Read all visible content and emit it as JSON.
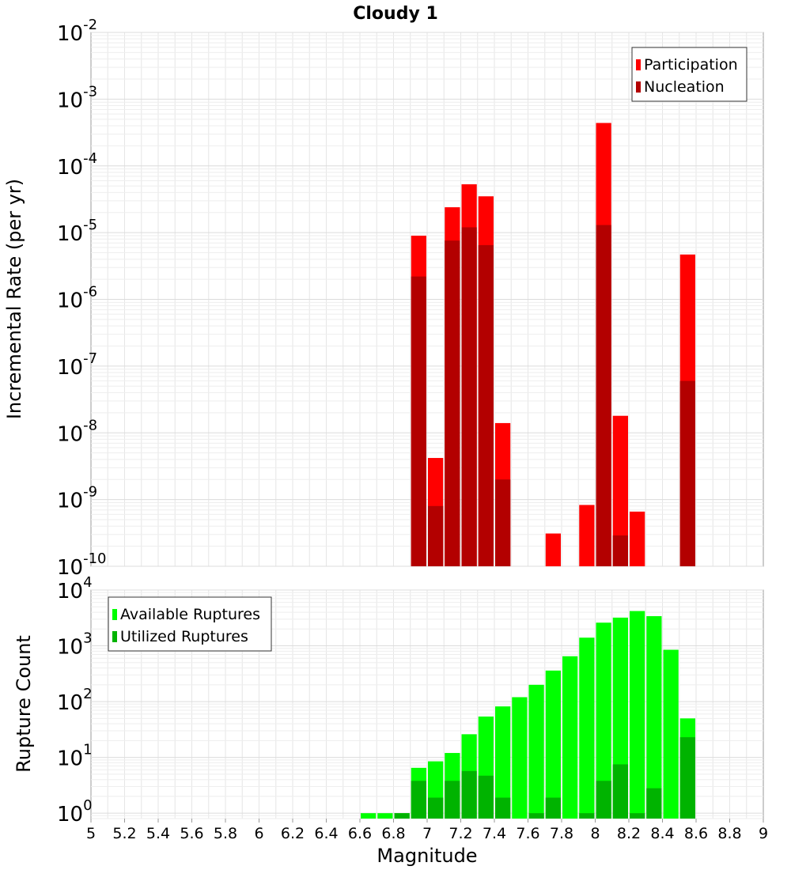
{
  "chart_data": [
    {
      "type": "bar",
      "title": "Cloudy 1",
      "xlabel": "",
      "ylabel": "Incremental Rate (per yr)",
      "yscale": "log",
      "ylim": [
        1e-10,
        0.01
      ],
      "xlim": [
        5,
        9
      ],
      "bin_width": 0.1,
      "grid": true,
      "legend": "top-right",
      "series": [
        {
          "name": "Participation",
          "color": "#ff0000",
          "x": [
            6.95,
            7.05,
            7.15,
            7.25,
            7.35,
            7.45,
            7.75,
            7.95,
            8.05,
            8.15,
            8.25,
            8.55
          ],
          "values": [
            9e-06,
            4.2e-09,
            2.4e-05,
            5.3e-05,
            3.5e-05,
            1.4e-08,
            3.1e-10,
            8.3e-10,
            0.00044,
            1.8e-08,
            6.6e-10,
            4.7e-06
          ]
        },
        {
          "name": "Nucleation",
          "color": "#b30000",
          "x": [
            6.95,
            7.05,
            7.15,
            7.25,
            7.35,
            7.45,
            8.05,
            8.15,
            8.55
          ],
          "values": [
            2.2e-06,
            8e-10,
            7.6e-06,
            1.2e-05,
            6.5e-06,
            2e-09,
            1.3e-05,
            2.9e-10,
            6e-08
          ]
        }
      ]
    },
    {
      "type": "bar",
      "title": "",
      "xlabel": "Magnitude",
      "ylabel": "Rupture Count",
      "yscale": "log",
      "ylim": [
        0.8,
        10000
      ],
      "xlim": [
        5,
        9
      ],
      "bin_width": 0.1,
      "xticks": [
        "5",
        "5.2",
        "5.4",
        "5.6",
        "5.8",
        "6",
        "6.2",
        "6.4",
        "6.6",
        "6.8",
        "7",
        "7.2",
        "7.4",
        "7.6",
        "7.8",
        "8",
        "8.2",
        "8.4",
        "8.6",
        "8.8",
        "9"
      ],
      "grid": true,
      "legend": "top-left",
      "series": [
        {
          "name": "Available Ruptures",
          "color": "#00ff00",
          "x": [
            6.65,
            6.75,
            6.85,
            6.95,
            7.05,
            7.15,
            7.25,
            7.35,
            7.45,
            7.55,
            7.65,
            7.75,
            7.85,
            7.95,
            8.05,
            8.15,
            8.25,
            8.35,
            8.45,
            8.55
          ],
          "values": [
            1,
            1,
            1,
            6.5,
            8.5,
            12,
            26,
            54,
            82,
            120,
            200,
            360,
            650,
            1400,
            2600,
            3200,
            4200,
            3400,
            850,
            50
          ]
        },
        {
          "name": "Utilized Ruptures",
          "color": "#00b300",
          "x": [
            6.85,
            6.95,
            7.05,
            7.15,
            7.25,
            7.35,
            7.45,
            7.65,
            7.75,
            7.95,
            8.05,
            8.15,
            8.25,
            8.35,
            8.55
          ],
          "values": [
            1,
            3.8,
            1.9,
            3.8,
            5.7,
            4.7,
            1.9,
            1,
            1.9,
            1,
            3.8,
            7.5,
            1,
            2.8,
            23
          ]
        }
      ]
    }
  ]
}
